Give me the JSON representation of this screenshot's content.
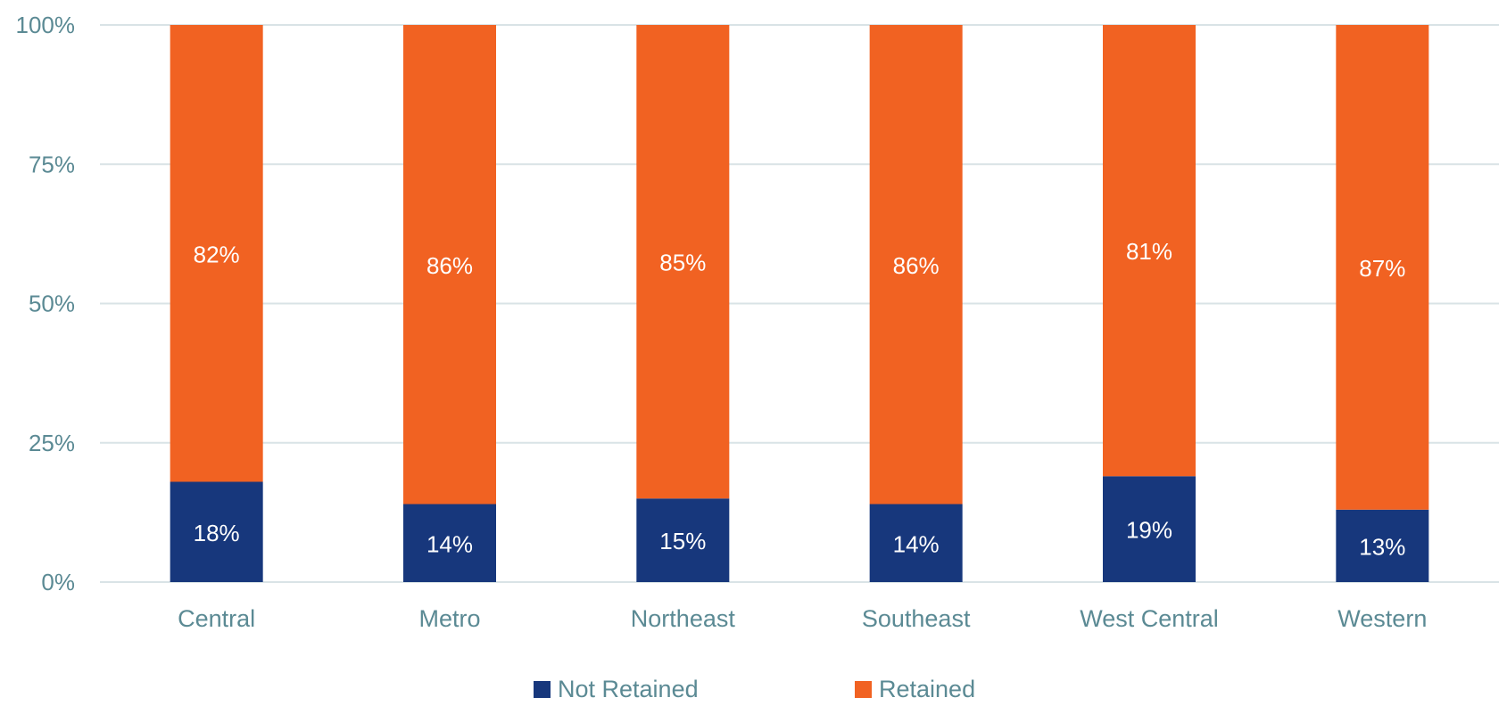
{
  "chart_data": {
    "type": "bar",
    "stacked": true,
    "normalized": true,
    "categories": [
      "Central",
      "Metro",
      "Northeast",
      "Southeast",
      "West Central",
      "Western"
    ],
    "series": [
      {
        "name": "Not Retained",
        "color": "#17377c",
        "values": [
          18,
          14,
          15,
          14,
          19,
          13
        ],
        "labels": [
          "18%",
          "14%",
          "15%",
          "14%",
          "19%",
          "13%"
        ]
      },
      {
        "name": "Retained",
        "color": "#f16222",
        "values": [
          82,
          86,
          85,
          86,
          81,
          87
        ],
        "labels": [
          "82%",
          "86%",
          "85%",
          "86%",
          "81%",
          "87%"
        ]
      }
    ],
    "yticks": [
      "0%",
      "25%",
      "50%",
      "75%",
      "100%"
    ],
    "ylim": [
      0,
      100
    ],
    "grid": true,
    "gridColor": "#d9e3e6",
    "legend": "bottom-center"
  }
}
